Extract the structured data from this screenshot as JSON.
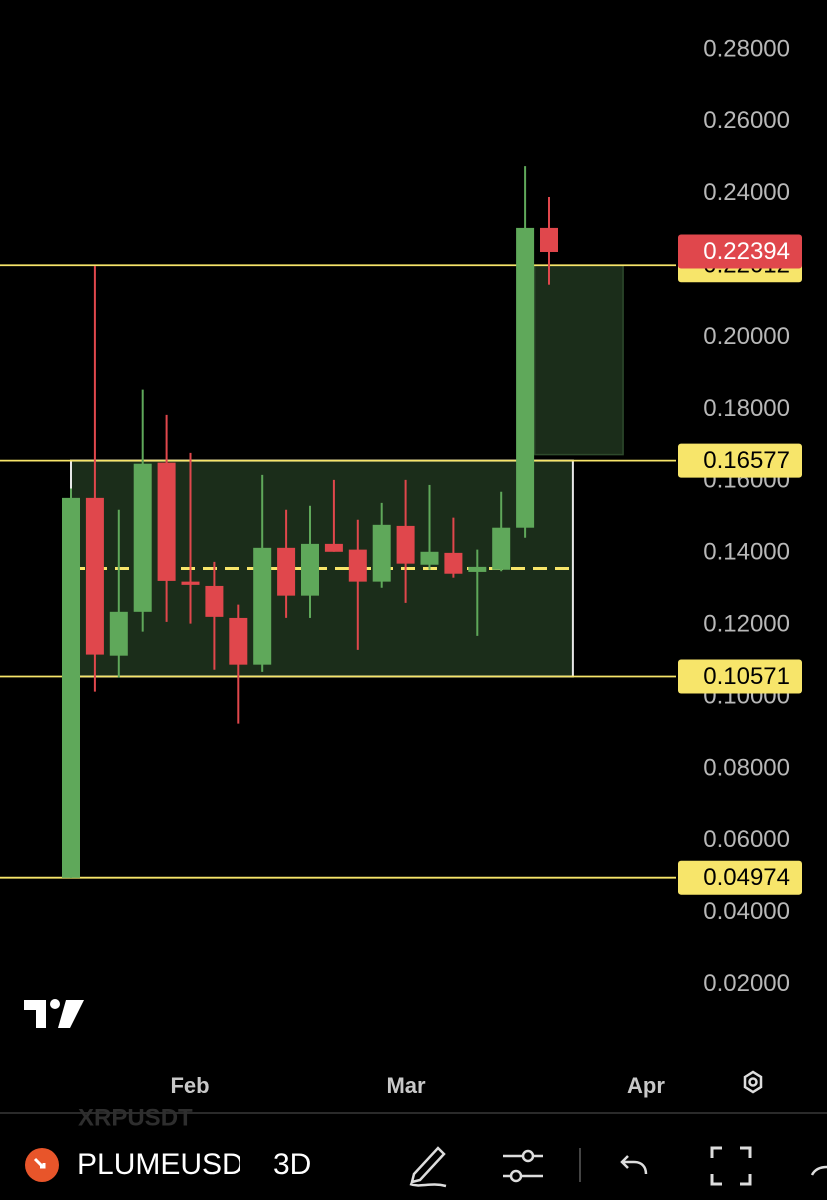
{
  "chart_data": {
    "type": "candlestick",
    "categories": [
      null,
      null,
      null,
      null,
      null,
      "Feb",
      null,
      null,
      null,
      null,
      null,
      null,
      null,
      null,
      "Mar",
      null,
      null,
      null,
      null,
      null,
      null,
      null,
      null,
      null,
      "Apr"
    ],
    "open": [
      0.0497,
      0.1554,
      0.1115,
      0.1237,
      0.1652,
      0.1321,
      0.1309,
      0.122,
      0.109,
      0.1415,
      0.1282,
      0.1426,
      0.141,
      0.1321,
      0.1476,
      0.1368,
      0.1401,
      0.1348,
      0.1354,
      0.1471,
      0.2305,
      null,
      null,
      null,
      null
    ],
    "high": [
      0.158,
      0.2199,
      0.1521,
      0.1855,
      0.1785,
      0.1679,
      0.1376,
      0.1257,
      0.1618,
      0.1521,
      0.1532,
      0.1604,
      0.1493,
      0.154,
      0.1604,
      0.159,
      0.1499,
      0.141,
      0.1571,
      0.2477,
      0.2391,
      null,
      null,
      null,
      null
    ],
    "low": [
      0.0497,
      0.1015,
      0.1054,
      0.1182,
      0.1209,
      0.1204,
      0.1076,
      0.0926,
      0.107,
      0.122,
      0.122,
      0.1404,
      0.1131,
      0.1304,
      0.1262,
      0.1354,
      0.1332,
      0.117,
      0.135,
      0.1443,
      0.2147,
      null,
      null,
      null,
      null
    ],
    "close": [
      0.1554,
      0.1118,
      0.1237,
      0.1649,
      0.1323,
      0.1312,
      0.1223,
      0.109,
      0.1415,
      0.1282,
      0.1426,
      0.1404,
      0.1321,
      0.1479,
      0.1371,
      0.1404,
      0.1343,
      0.1362,
      0.1471,
      0.2305,
      0.2238,
      null,
      null,
      null,
      null
    ],
    "up_color": "#5fa85a",
    "down_color": "#e0474c",
    "ylim": [
      0.0057,
      0.2939
    ],
    "yticks": [
      {
        "value": 0.02,
        "label": "0.02000"
      },
      {
        "value": 0.04,
        "label": "0.04000"
      },
      {
        "value": 0.06,
        "label": "0.06000"
      },
      {
        "value": 0.08,
        "label": "0.08000"
      },
      {
        "value": 0.1,
        "label": "0.10000"
      },
      {
        "value": 0.12,
        "label": "0.12000"
      },
      {
        "value": 0.14,
        "label": "0.14000"
      },
      {
        "value": 0.16,
        "label": "0.16000"
      },
      {
        "value": 0.18,
        "label": "0.18000"
      },
      {
        "value": 0.2,
        "label": "0.20000"
      },
      {
        "value": 0.22,
        "label": "0.22000"
      },
      {
        "value": 0.24,
        "label": "0.24000"
      },
      {
        "value": 0.26,
        "label": "0.26000"
      },
      {
        "value": 0.28,
        "label": "0.28000"
      }
    ],
    "levels": [
      0.22012,
      0.16577,
      0.10571,
      0.04974
    ],
    "level_color": "#f7e56a",
    "last_price": 0.22394
  },
  "toolbar": {
    "symbol": "PLUMEUSDT",
    "ghost_symbol": "XRPUSDT",
    "interval": "3D"
  }
}
